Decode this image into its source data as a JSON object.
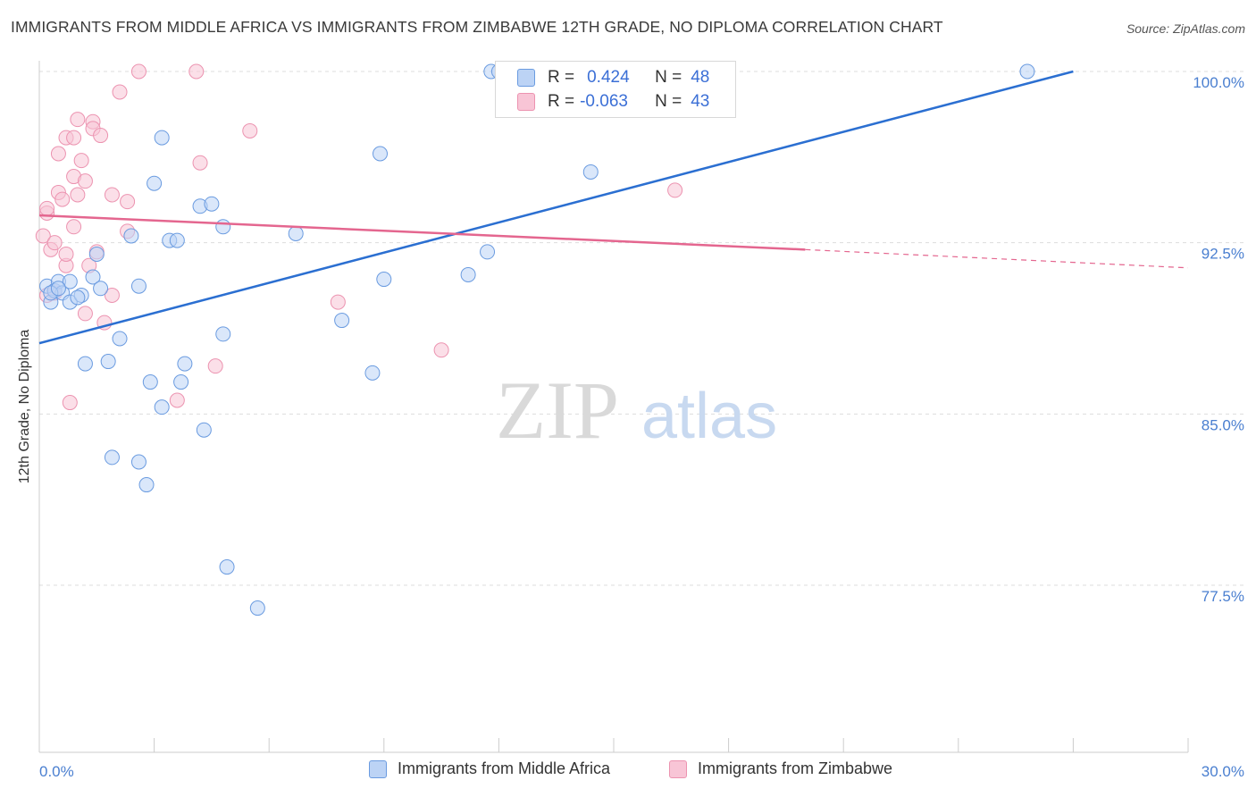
{
  "title": "IMMIGRANTS FROM MIDDLE AFRICA VS IMMIGRANTS FROM ZIMBABWE 12TH GRADE, NO DIPLOMA CORRELATION CHART",
  "source": "Source: ZipAtlas.com",
  "watermark": {
    "zip": "ZIP",
    "atlas": "atlas"
  },
  "colors": {
    "blue_fill": "#bcd3f5",
    "blue_stroke": "#6a9be0",
    "blue_line": "#2b6fd1",
    "pink_fill": "#f8c5d6",
    "pink_stroke": "#ec93b0",
    "pink_line": "#e4668f",
    "tick_text": "#4a7fd0",
    "grid": "#dddddd"
  },
  "legend_box": {
    "rows": [
      {
        "r_label": "R =",
        "r_value": "0.424",
        "n_label": "N =",
        "n_value": "48"
      },
      {
        "r_label": "R =",
        "r_value": "-0.063",
        "n_label": "N =",
        "n_value": "43"
      }
    ]
  },
  "chart_data": {
    "type": "scatter",
    "title": "IMMIGRANTS FROM MIDDLE AFRICA VS IMMIGRANTS FROM ZIMBABWE 12TH GRADE, NO DIPLOMA CORRELATION CHART",
    "xlabel": "",
    "ylabel": "12th Grade, No Diploma",
    "xlim": [
      0,
      30
    ],
    "ylim": [
      70.5,
      100.5
    ],
    "x_tick_labels": [
      "0.0%",
      "30.0%"
    ],
    "y_ticks": [
      77.5,
      85.0,
      92.5,
      100.0
    ],
    "y_tick_labels": [
      "77.5%",
      "85.0%",
      "92.5%",
      "100.0%"
    ],
    "grid": true,
    "legend_position": "bottom",
    "series": [
      {
        "name": "Immigrants from Middle Africa",
        "color": "blue",
        "points": [
          [
            0.2,
            90.6
          ],
          [
            0.3,
            89.9
          ],
          [
            0.4,
            90.4
          ],
          [
            0.5,
            90.8
          ],
          [
            0.6,
            90.3
          ],
          [
            0.8,
            90.8
          ],
          [
            0.8,
            89.9
          ],
          [
            1.1,
            90.2
          ],
          [
            1.2,
            87.2
          ],
          [
            1.4,
            91.0
          ],
          [
            1.5,
            92.0
          ],
          [
            1.6,
            90.5
          ],
          [
            1.8,
            87.3
          ],
          [
            1.9,
            83.1
          ],
          [
            2.1,
            88.3
          ],
          [
            2.4,
            92.8
          ],
          [
            2.6,
            90.6
          ],
          [
            2.6,
            82.9
          ],
          [
            2.8,
            81.9
          ],
          [
            2.9,
            86.4
          ],
          [
            3.0,
            95.1
          ],
          [
            3.2,
            85.3
          ],
          [
            3.2,
            97.1
          ],
          [
            3.4,
            92.6
          ],
          [
            3.6,
            92.6
          ],
          [
            3.7,
            86.4
          ],
          [
            3.8,
            87.2
          ],
          [
            4.2,
            94.1
          ],
          [
            4.3,
            84.3
          ],
          [
            4.5,
            94.2
          ],
          [
            4.8,
            88.5
          ],
          [
            4.8,
            93.2
          ],
          [
            4.9,
            78.3
          ],
          [
            5.7,
            76.5
          ],
          [
            6.7,
            92.9
          ],
          [
            7.9,
            89.1
          ],
          [
            8.7,
            86.8
          ],
          [
            8.9,
            96.4
          ],
          [
            9.0,
            90.9
          ],
          [
            11.2,
            91.1
          ],
          [
            11.7,
            92.1
          ],
          [
            11.8,
            100.0
          ],
          [
            12.0,
            100.0
          ],
          [
            14.4,
            95.6
          ],
          [
            25.8,
            100.0
          ],
          [
            0.3,
            90.3
          ],
          [
            0.5,
            90.5
          ],
          [
            1.0,
            90.1
          ]
        ],
        "trend": {
          "x": [
            0.0,
            27.0
          ],
          "y": [
            88.1,
            100.0
          ]
        }
      },
      {
        "name": "Immigrants from Zimbabwe",
        "color": "pink",
        "points": [
          [
            0.1,
            92.8
          ],
          [
            0.2,
            93.8
          ],
          [
            0.2,
            94.0
          ],
          [
            0.3,
            92.2
          ],
          [
            0.4,
            90.3
          ],
          [
            0.4,
            92.5
          ],
          [
            0.5,
            94.7
          ],
          [
            0.5,
            96.4
          ],
          [
            0.6,
            94.4
          ],
          [
            0.7,
            91.5
          ],
          [
            0.7,
            92.0
          ],
          [
            0.7,
            97.1
          ],
          [
            0.8,
            85.5
          ],
          [
            0.9,
            97.1
          ],
          [
            0.9,
            95.4
          ],
          [
            0.9,
            93.2
          ],
          [
            1.0,
            97.9
          ],
          [
            1.0,
            94.6
          ],
          [
            1.1,
            96.1
          ],
          [
            1.2,
            95.2
          ],
          [
            1.2,
            89.4
          ],
          [
            1.3,
            91.5
          ],
          [
            1.4,
            97.8
          ],
          [
            1.4,
            97.5
          ],
          [
            1.5,
            92.1
          ],
          [
            1.6,
            97.2
          ],
          [
            1.7,
            89.0
          ],
          [
            1.9,
            94.6
          ],
          [
            1.9,
            90.2
          ],
          [
            2.1,
            99.1
          ],
          [
            2.3,
            93.0
          ],
          [
            2.3,
            94.3
          ],
          [
            2.6,
            100.0
          ],
          [
            3.6,
            85.6
          ],
          [
            4.1,
            100.0
          ],
          [
            4.2,
            96.0
          ],
          [
            4.6,
            87.1
          ],
          [
            5.5,
            97.4
          ],
          [
            7.8,
            89.9
          ],
          [
            10.5,
            87.8
          ],
          [
            16.6,
            94.8
          ],
          [
            0.2,
            90.2
          ],
          [
            0.4,
            90.4
          ]
        ],
        "trend": {
          "x": [
            0.0,
            20.0
          ],
          "y": [
            93.7,
            92.2
          ]
        },
        "trend_dashed": {
          "x": [
            20.0,
            30.0
          ],
          "y": [
            92.2,
            91.4
          ]
        }
      }
    ]
  },
  "bottom_legend": [
    {
      "label": "Immigrants from Middle Africa",
      "color": "blue"
    },
    {
      "label": "Immigrants from Zimbabwe",
      "color": "pink"
    }
  ]
}
